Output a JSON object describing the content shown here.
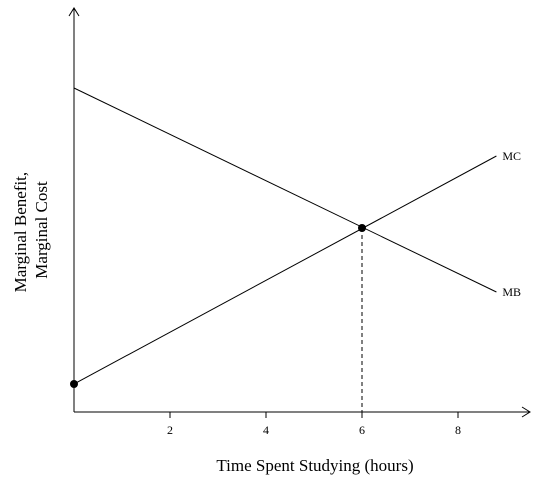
{
  "chart_data": {
    "type": "line",
    "title": "",
    "xlabel": "Time Spent Studying (hours)",
    "ylabel_lines": [
      "Marginal Benefit,",
      "Marginal Cost"
    ],
    "xlim": [
      0,
      10
    ],
    "ylim": [
      0,
      10
    ],
    "xticks": [
      2,
      4,
      6,
      8
    ],
    "yticks": [],
    "grid": false,
    "legend": "none",
    "series": [
      {
        "name": "MC",
        "x": [
          0,
          8.8
        ],
        "y": [
          0.7,
          6.4
        ]
      },
      {
        "name": "MB",
        "x": [
          0,
          8.8
        ],
        "y": [
          8.1,
          3.0
        ]
      }
    ],
    "markers": [
      {
        "x": 0,
        "y": 0.7
      },
      {
        "x": 6,
        "y": 4.6
      }
    ],
    "dropline": {
      "x": 6,
      "y": 4.6
    },
    "colors": {
      "line": "#000000",
      "background": "#ffffff"
    }
  }
}
